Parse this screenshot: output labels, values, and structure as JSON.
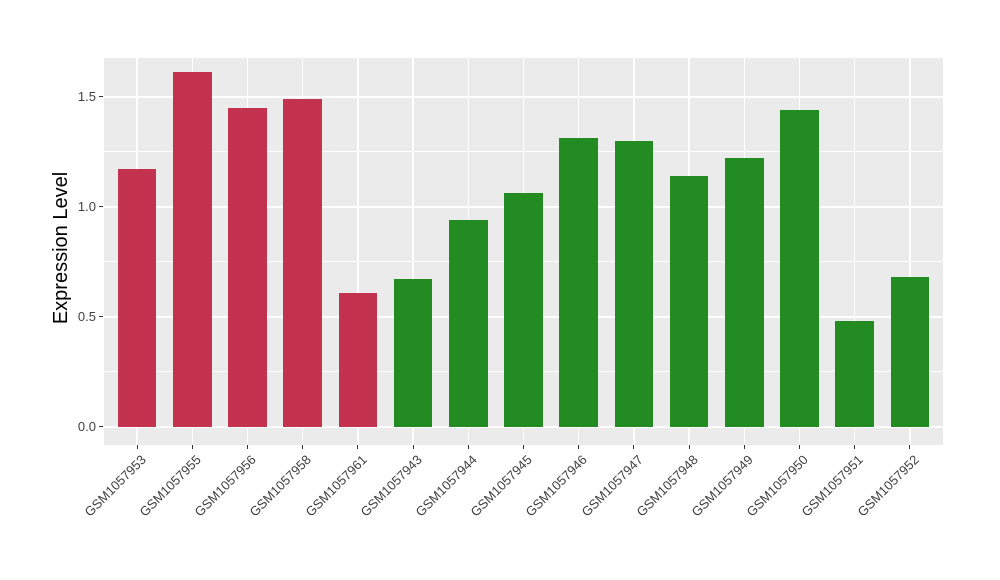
{
  "figure": {
    "background": "#FFFFFF",
    "panel_background": "#EBEBEB",
    "gridline_color": "#FFFFFF",
    "axis_text_color": "#404040",
    "axis_title_color": "#000000",
    "tick_mark_color": "#333333"
  },
  "chart_data": {
    "type": "bar",
    "title": "",
    "xlabel": "",
    "ylabel": "Expression Level",
    "categories": [
      "GSM1057953",
      "GSM1057955",
      "GSM1057956",
      "GSM1057958",
      "GSM1057961",
      "GSM1057943",
      "GSM1057944",
      "GSM1057945",
      "GSM1057946",
      "GSM1057947",
      "GSM1057948",
      "GSM1057949",
      "GSM1057950",
      "GSM1057951",
      "GSM1057952"
    ],
    "values": [
      1.17,
      1.61,
      1.45,
      1.49,
      0.61,
      0.67,
      0.94,
      1.06,
      1.31,
      1.3,
      1.14,
      1.22,
      1.44,
      0.48,
      0.68
    ],
    "colors": [
      "#C3324F",
      "#C3324F",
      "#C3324F",
      "#C3324F",
      "#C3324F",
      "#228B22",
      "#228B22",
      "#228B22",
      "#228B22",
      "#228B22",
      "#228B22",
      "#228B22",
      "#228B22",
      "#228B22",
      "#228B22"
    ],
    "group_colors": {
      "red_group": "#C3324F",
      "green_group": "#228B22"
    },
    "y_ticks": [
      0,
      0.5,
      1,
      1.5
    ],
    "y_tick_labels": [
      "0.0",
      "0.5",
      "1.0",
      "1.5"
    ],
    "y_minor_ticks": [
      0.25,
      0.75,
      1.25
    ],
    "ylim": [
      -0.082,
      1.675
    ],
    "x_label_rotation_deg": 45,
    "grid": true,
    "legend_position": "none"
  }
}
